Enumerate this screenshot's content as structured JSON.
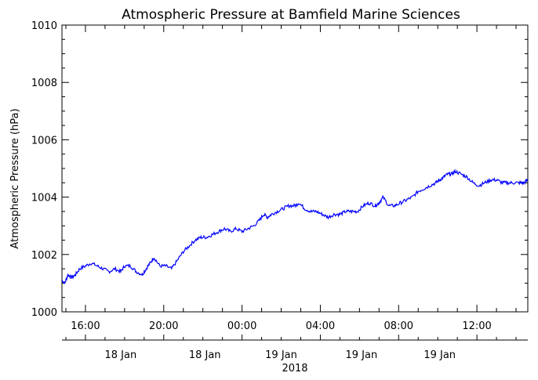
{
  "chart_data": {
    "type": "line",
    "title": "Atmospheric Pressure at Bamfield Marine Sciences",
    "ylabel": "Atmospheric Pressure (hPa)",
    "xlabel": "",
    "ylim": [
      1000,
      1010
    ],
    "xlim_hours": [
      14.8,
      38.6
    ],
    "y_ticks": [
      "1000",
      "1002",
      "1004",
      "1006",
      "1008",
      "1010"
    ],
    "x_ticks": [
      {
        "hour": 16,
        "label": "16:00"
      },
      {
        "hour": 20,
        "label": "20:00"
      },
      {
        "hour": 24,
        "label": "00:00"
      },
      {
        "hour": 28,
        "label": "04:00"
      },
      {
        "hour": 32,
        "label": "08:00"
      },
      {
        "hour": 36,
        "label": "12:00"
      }
    ],
    "date_labels": [
      {
        "hour": 17.8,
        "label": "18 Jan"
      },
      {
        "hour": 22.1,
        "label": "18 Jan"
      },
      {
        "hour": 26.0,
        "label": "19 Jan"
      },
      {
        "hour": 30.1,
        "label": "19 Jan"
      },
      {
        "hour": 34.1,
        "label": "19 Jan"
      }
    ],
    "year_label": "2018",
    "grid": false,
    "series_color": "#0000ff",
    "series": [
      {
        "name": "",
        "x": [
          14.8,
          14.95,
          15.1,
          15.3,
          15.5,
          15.7,
          16.0,
          16.3,
          16.6,
          16.9,
          17.2,
          17.5,
          17.8,
          18.0,
          18.3,
          18.6,
          18.9,
          19.1,
          19.3,
          19.5,
          19.8,
          20.1,
          20.4,
          20.7,
          21.0,
          21.3,
          21.6,
          21.9,
          22.2,
          22.5,
          22.8,
          23.1,
          23.4,
          23.7,
          24.0,
          24.3,
          24.6,
          24.9,
          25.1,
          25.3,
          25.5,
          25.8,
          26.1,
          26.4,
          26.7,
          26.9,
          27.2,
          27.5,
          27.8,
          28.1,
          28.4,
          28.7,
          29.0,
          29.3,
          29.6,
          29.9,
          30.2,
          30.5,
          30.8,
          31.0,
          31.2,
          31.5,
          31.8,
          32.1,
          32.4,
          32.7,
          33.0,
          33.3,
          33.6,
          33.9,
          34.1,
          34.3,
          34.5,
          34.7,
          34.9,
          35.2,
          35.5,
          35.8,
          36.1,
          36.4,
          36.7,
          37.0,
          37.3,
          37.6,
          37.9,
          38.2,
          38.4,
          38.6
        ],
        "values": [
          1001.1,
          1001.0,
          1001.3,
          1001.2,
          1001.3,
          1001.5,
          1001.6,
          1001.7,
          1001.6,
          1001.5,
          1001.4,
          1001.5,
          1001.4,
          1001.6,
          1001.6,
          1001.4,
          1001.3,
          1001.5,
          1001.7,
          1001.9,
          1001.6,
          1001.6,
          1001.5,
          1001.8,
          1002.1,
          1002.3,
          1002.5,
          1002.6,
          1002.6,
          1002.7,
          1002.8,
          1002.9,
          1002.8,
          1002.9,
          1002.8,
          1002.9,
          1003.0,
          1003.2,
          1003.4,
          1003.3,
          1003.4,
          1003.5,
          1003.6,
          1003.7,
          1003.7,
          1003.8,
          1003.6,
          1003.5,
          1003.5,
          1003.4,
          1003.3,
          1003.4,
          1003.4,
          1003.5,
          1003.5,
          1003.5,
          1003.7,
          1003.8,
          1003.7,
          1003.8,
          1004.0,
          1003.7,
          1003.7,
          1003.8,
          1003.9,
          1004.0,
          1004.2,
          1004.3,
          1004.4,
          1004.5,
          1004.6,
          1004.7,
          1004.8,
          1004.8,
          1004.9,
          1004.8,
          1004.7,
          1004.5,
          1004.4,
          1004.5,
          1004.6,
          1004.6,
          1004.5,
          1004.5,
          1004.5,
          1004.5,
          1004.5,
          1004.6
        ]
      }
    ]
  }
}
